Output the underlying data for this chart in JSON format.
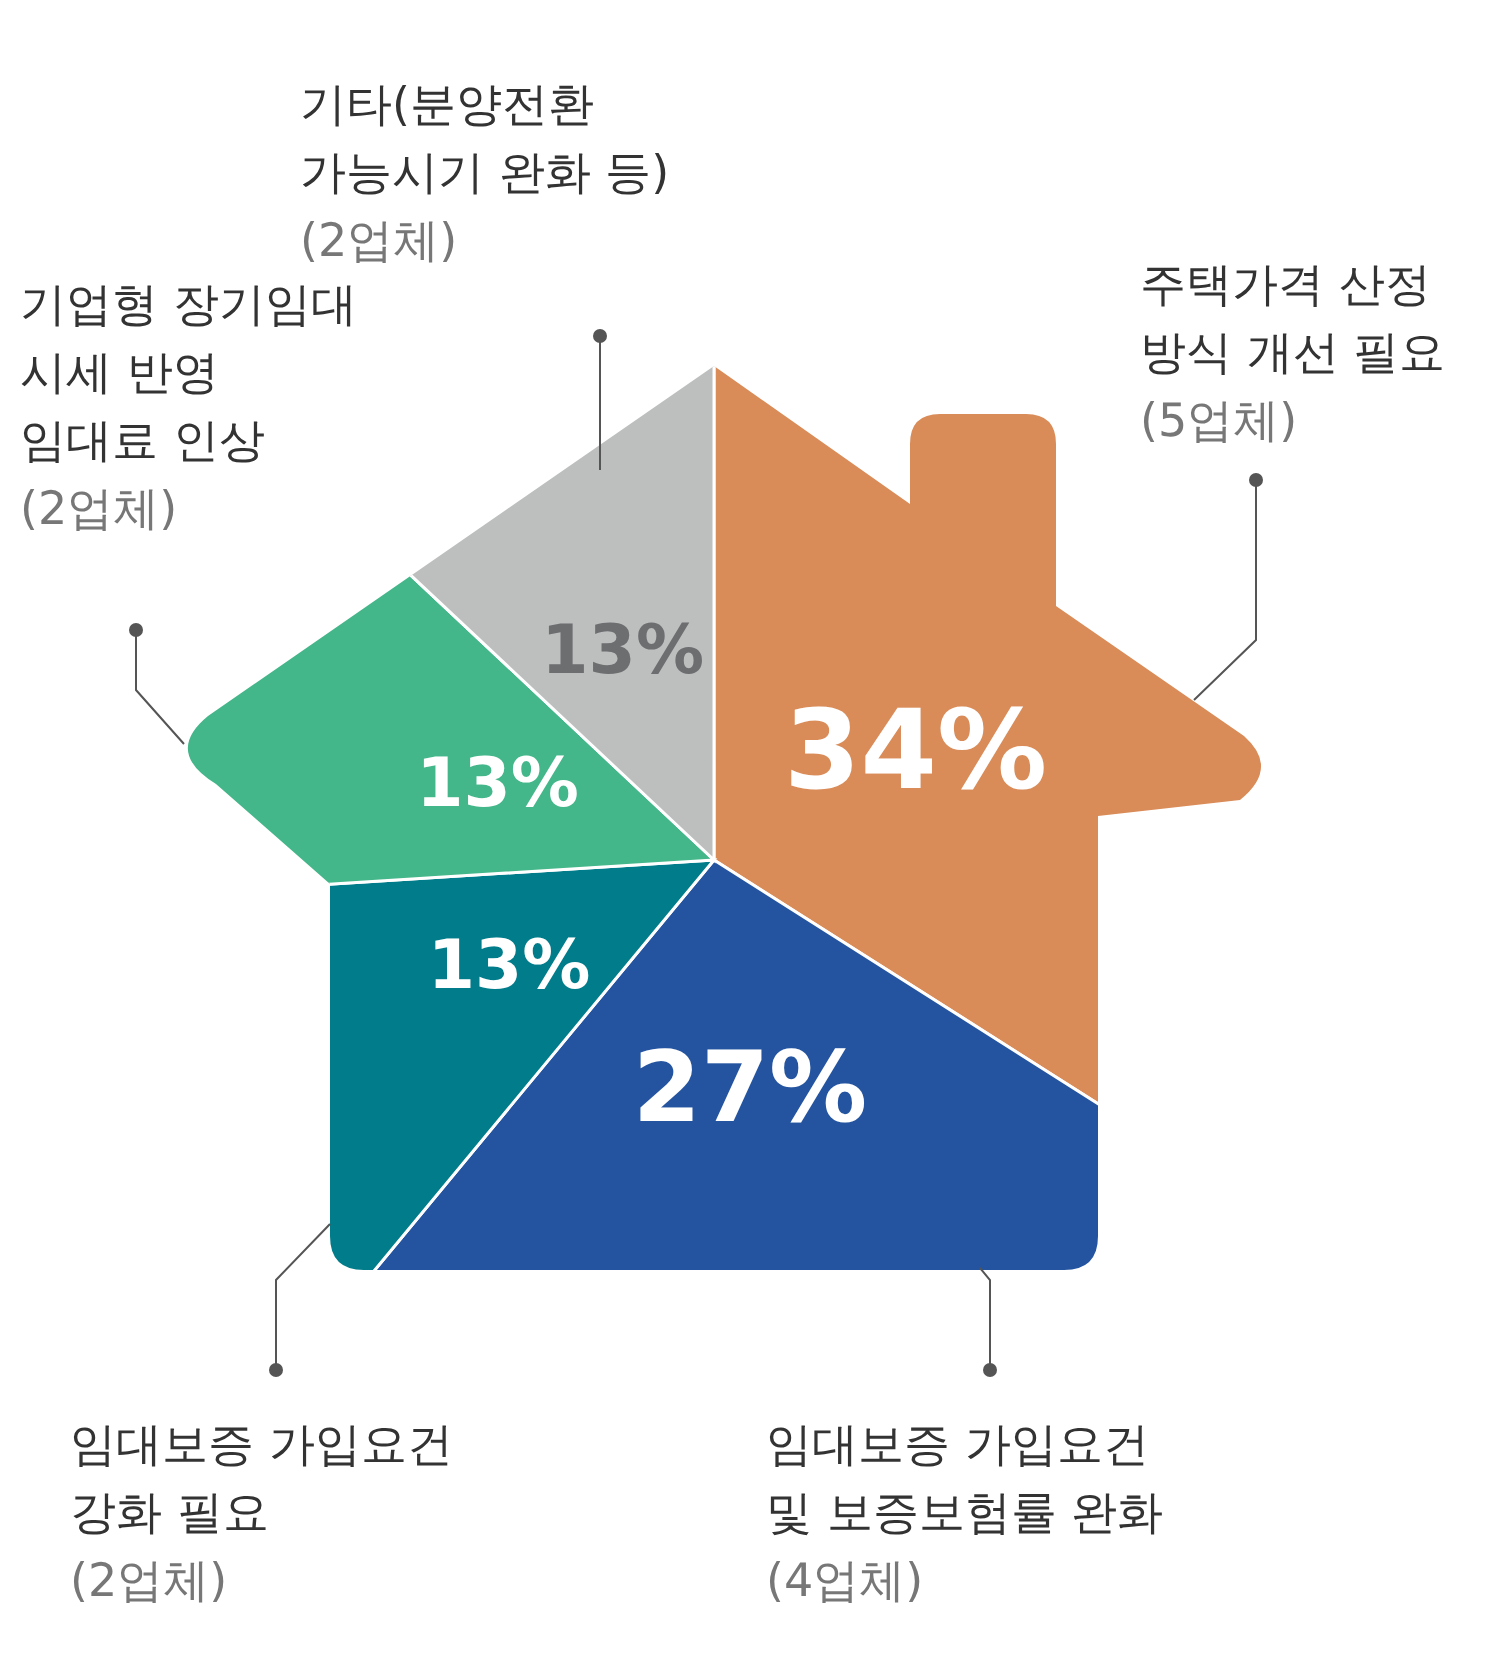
{
  "chart_data": {
    "type": "pie",
    "categories": [
      "주택가격 산정\n방식 개선 필요\n(5업체)",
      "임대보증 가입요건\n및 보증보험률 완화\n(4업체)",
      "임대보증 가입요건\n강화 필요\n(2업체)",
      "기업형 장기임대\n시세 반영\n임대료 인상\n(2업체)",
      "기타(분양전환\n가능시기 완화 등)\n(2업체)"
    ],
    "values": [
      34,
      27,
      13,
      13,
      13
    ],
    "colors": [
      "#d98b58",
      "#2454a0",
      "#007c8a",
      "#43b68a",
      "#bdbebe"
    ],
    "value_labels": [
      "34%",
      "27%",
      "13%",
      "13%",
      "13%"
    ]
  }
}
